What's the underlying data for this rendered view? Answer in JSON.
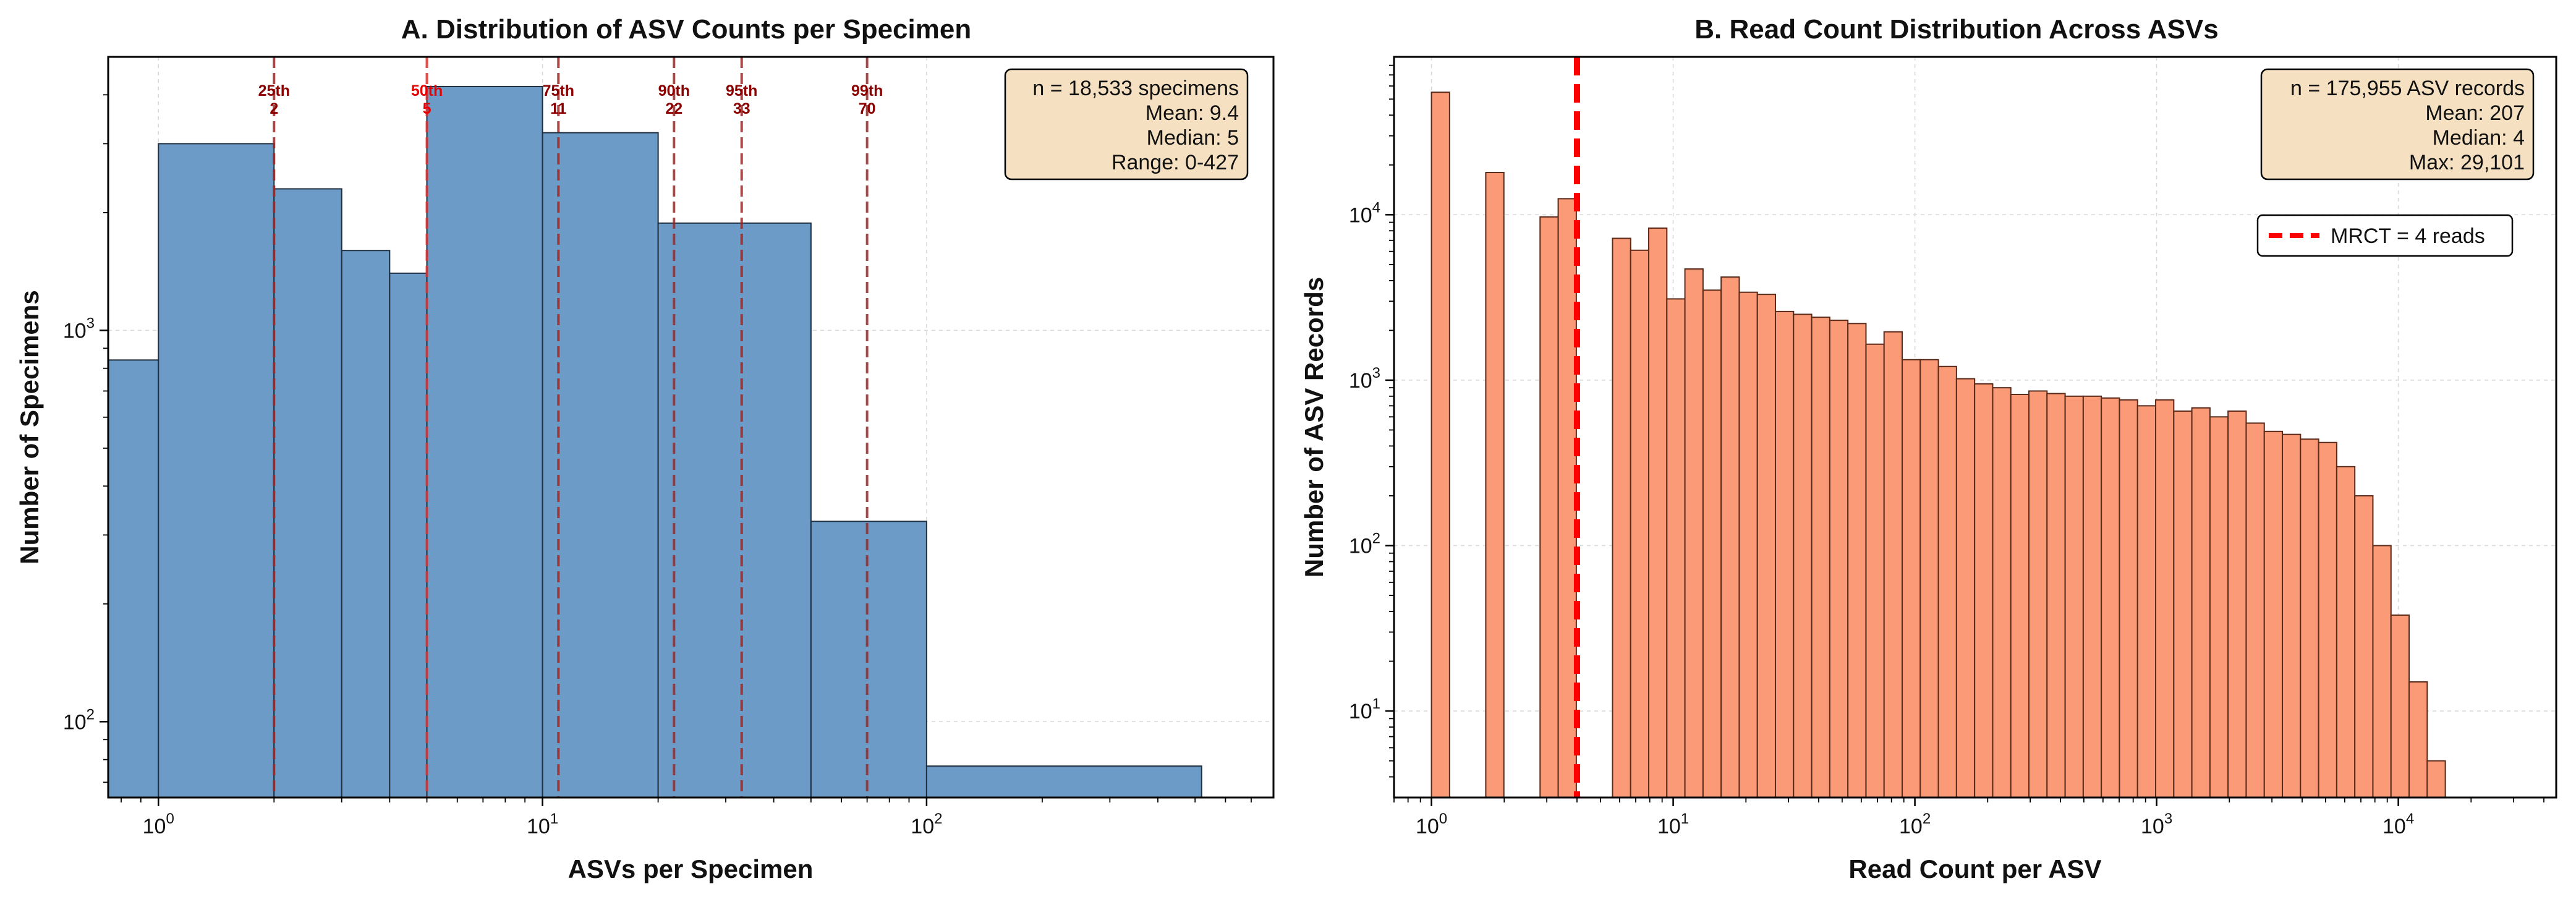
{
  "chart_data": [
    {
      "type": "bar",
      "title": "A. Distribution of ASV Counts per Specimen",
      "xlabel": "ASVs per Specimen",
      "ylabel": "Number of Specimens",
      "xscale": "log",
      "yscale": "log",
      "xlim": [
        0.74,
        800
      ],
      "ylim": [
        64,
        5000
      ],
      "xticks": [
        {
          "value": 1,
          "base": "10",
          "exp": "0"
        },
        {
          "value": 10,
          "base": "10",
          "exp": "1"
        },
        {
          "value": 100,
          "base": "10",
          "exp": "2"
        }
      ],
      "yticks": [
        {
          "value": 100,
          "base": "10",
          "exp": "2"
        },
        {
          "value": 1000,
          "base": "10",
          "exp": "3"
        }
      ],
      "grid": true,
      "bar_color": "#6b9bc6",
      "bins": [
        {
          "x0": 0.74,
          "x1": 1,
          "count": 840
        },
        {
          "x0": 1,
          "x1": 2,
          "count": 3000
        },
        {
          "x0": 2,
          "x1": 3,
          "count": 2300
        },
        {
          "x0": 3,
          "x1": 4,
          "count": 1600
        },
        {
          "x0": 4,
          "x1": 5,
          "count": 1400
        },
        {
          "x0": 5,
          "x1": 10,
          "count": 4200
        },
        {
          "x0": 10,
          "x1": 20,
          "count": 3200
        },
        {
          "x0": 20,
          "x1": 50,
          "count": 1880
        },
        {
          "x0": 50,
          "x1": 100,
          "count": 325
        },
        {
          "x0": 100,
          "x1": 520,
          "count": 77
        }
      ],
      "percentiles": [
        {
          "label": "25th",
          "value_label": "2",
          "value": 2
        },
        {
          "label": "50th",
          "value_label": "5",
          "value": 5
        },
        {
          "label": "75th",
          "value_label": "11",
          "value": 11
        },
        {
          "label": "90th",
          "value_label": "22",
          "value": 22
        },
        {
          "label": "95th",
          "value_label": "33",
          "value": 33
        },
        {
          "label": "99th",
          "value_label": "70",
          "value": 70
        }
      ],
      "stats_box": {
        "lines": [
          "n = 18,533 specimens",
          "Mean: 9.4",
          "Median: 5",
          "Range: 0-427"
        ],
        "placement": "top-right"
      }
    },
    {
      "type": "bar",
      "title": "B. Read Count Distribution Across ASVs",
      "xlabel": "Read Count per ASV",
      "ylabel": "Number of ASV Records",
      "xscale": "log",
      "yscale": "log",
      "xlim": [
        0.7,
        45000
      ],
      "ylim": [
        3,
        90000
      ],
      "xticks": [
        {
          "value": 1,
          "base": "10",
          "exp": "0"
        },
        {
          "value": 10,
          "base": "10",
          "exp": "1"
        },
        {
          "value": 100,
          "base": "10",
          "exp": "2"
        },
        {
          "value": 1000,
          "base": "10",
          "exp": "3"
        },
        {
          "value": 10000,
          "base": "10",
          "exp": "4"
        }
      ],
      "yticks": [
        {
          "value": 10,
          "base": "10",
          "exp": "1"
        },
        {
          "value": 100,
          "base": "10",
          "exp": "2"
        },
        {
          "value": 1000,
          "base": "10",
          "exp": "3"
        },
        {
          "value": 10000,
          "base": "10",
          "exp": "4"
        }
      ],
      "grid": true,
      "bar_color": "#fa9a77",
      "bin_log_start": 0,
      "bin_log_width": 0.0749,
      "counts": [
        55000,
        0,
        0,
        18000,
        0,
        0,
        9700,
        12500,
        0,
        0,
        7200,
        6100,
        8300,
        3100,
        4700,
        3500,
        4200,
        3400,
        3300,
        2600,
        2500,
        2400,
        2300,
        2200,
        1650,
        1960,
        1330,
        1330,
        1210,
        1020,
        950,
        900,
        820,
        860,
        830,
        800,
        800,
        780,
        760,
        700,
        760,
        650,
        680,
        600,
        650,
        550,
        490,
        470,
        440,
        420,
        300,
        200,
        100,
        38,
        15,
        5
      ],
      "threshold": {
        "value": 4,
        "label": "MRCT = 4 reads",
        "color": "#ff0000"
      },
      "legend_placement": "upper-right",
      "stats_box": {
        "lines": [
          "n = 175,955 ASV records",
          "Mean: 207",
          "Median: 4",
          "Max: 29,101"
        ],
        "placement": "top-right"
      }
    }
  ]
}
